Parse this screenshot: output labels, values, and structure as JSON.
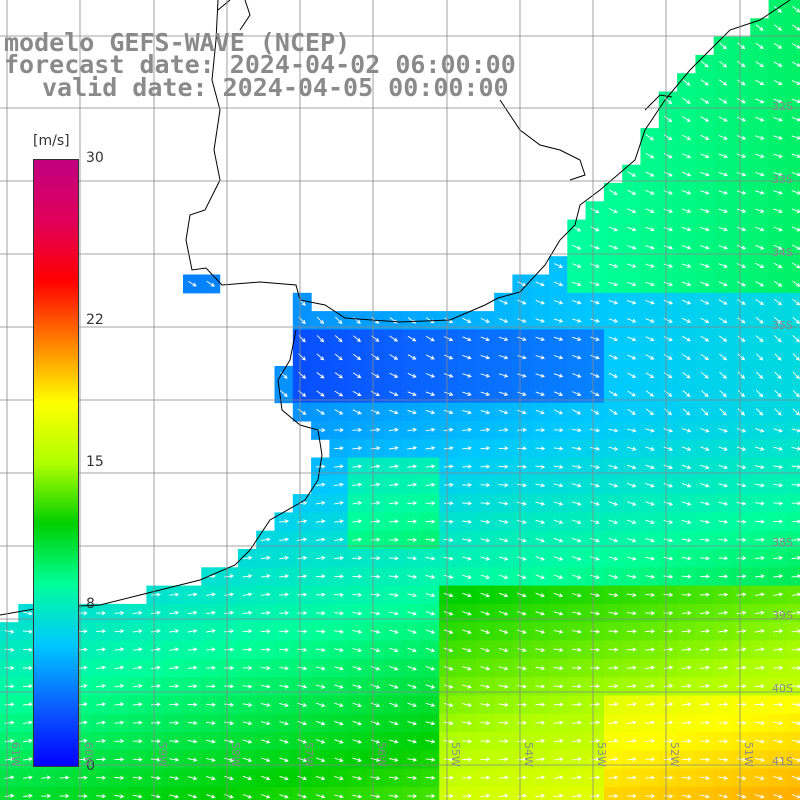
{
  "title": {
    "line1": "modelo GEFS-WAVE (NCEP)",
    "line2": "forecast date: 2024-04-02 06:00:00",
    "line3": "valid date: 2024-04-05 00:00:00"
  },
  "colorbar": {
    "unit": "[m/s]",
    "ticks": [
      "30",
      "22",
      "15",
      "8",
      "0"
    ],
    "tick_values": [
      30,
      22,
      15,
      8,
      0
    ],
    "min": 0,
    "max": 30,
    "colors": [
      "#0000ff",
      "#0a60ff",
      "#00c8ff",
      "#00ff9a",
      "#00d000",
      "#b0ff00",
      "#ffff00",
      "#ff8000",
      "#ff0000",
      "#e0005a",
      "#c00080"
    ]
  },
  "lat_labels": [
    "32S",
    "33S",
    "34S",
    "35S",
    "38S",
    "39S",
    "40S",
    "41S"
  ],
  "lon_labels": [
    "61W",
    "60W",
    "59W",
    "58W",
    "57W",
    "56W",
    "55W",
    "54W",
    "53W",
    "52W",
    "51W"
  ],
  "colors": {
    "land": "#ffffff",
    "coast": "#000000",
    "grid": "#888888",
    "arrow": "#ffffff",
    "text": "#8a8a8a"
  }
}
